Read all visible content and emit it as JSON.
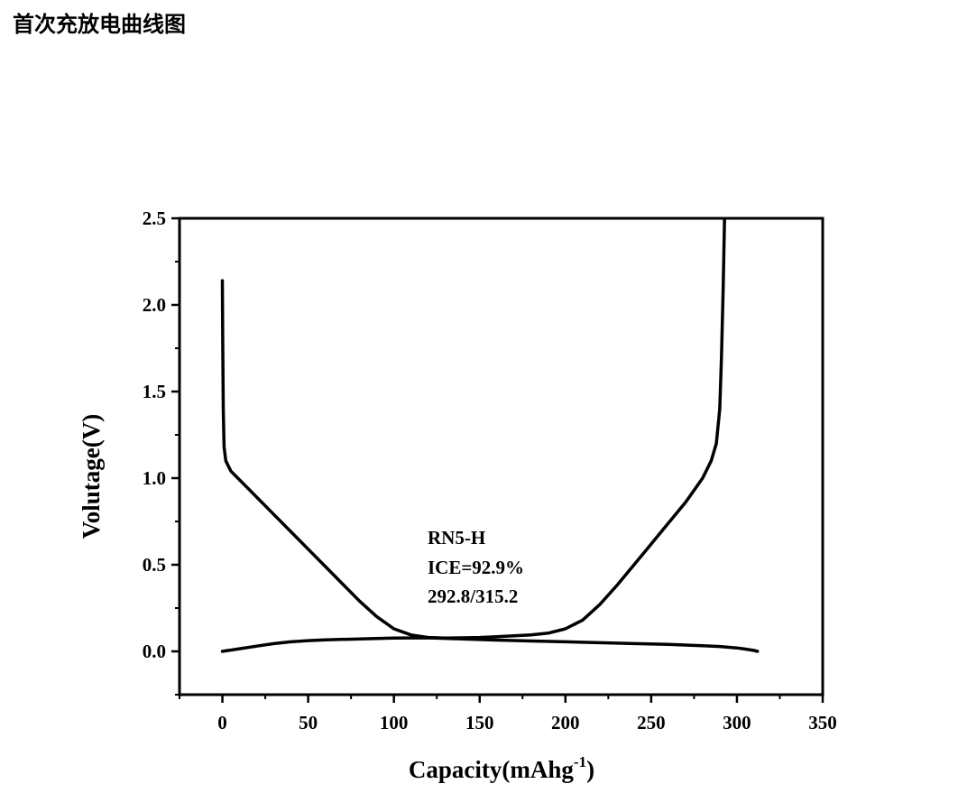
{
  "page": {
    "title": "首次充放电曲线图"
  },
  "chart_data": {
    "type": "line",
    "title": "",
    "xlabel_main": "Capacity(mAhg",
    "xlabel_sup": "-1",
    "xlabel_tail": ")",
    "ylabel": "Volutage(V)",
    "xlim": [
      -25,
      350
    ],
    "ylim": [
      -0.25,
      2.5
    ],
    "x_ticks": [
      0,
      50,
      100,
      150,
      200,
      250,
      300,
      350
    ],
    "x_tick_labels": [
      "0",
      "50",
      "100",
      "150",
      "200",
      "250",
      "300",
      "350"
    ],
    "y_ticks": [
      0.0,
      0.5,
      1.0,
      1.5,
      2.0,
      2.5
    ],
    "y_tick_labels": [
      "0.0",
      "0.5",
      "1.0",
      "1.5",
      "2.0",
      "2.5"
    ],
    "grid": false,
    "annotation": [
      "RN5-H",
      "ICE=92.9%",
      "292.8/315.2"
    ],
    "series": [
      {
        "color": "#000000",
        "x": [
          0,
          0.2,
          0.5,
          1,
          2,
          5,
          10,
          15,
          20,
          25,
          30,
          40,
          50,
          60,
          70,
          80,
          90,
          100,
          110,
          120,
          130,
          140,
          150,
          160,
          170,
          180,
          190,
          200,
          210,
          220,
          230,
          240,
          250,
          260,
          270,
          280,
          285,
          288,
          290,
          291,
          292,
          292.8
        ],
        "y": [
          2.14,
          1.8,
          1.4,
          1.18,
          1.1,
          1.04,
          0.99,
          0.94,
          0.89,
          0.84,
          0.79,
          0.69,
          0.59,
          0.49,
          0.39,
          0.29,
          0.2,
          0.13,
          0.095,
          0.08,
          0.077,
          0.078,
          0.08,
          0.085,
          0.09,
          0.095,
          0.105,
          0.13,
          0.18,
          0.27,
          0.38,
          0.5,
          0.62,
          0.74,
          0.86,
          1.0,
          1.1,
          1.2,
          1.4,
          1.7,
          2.1,
          2.5
        ]
      },
      {
        "color": "#000000",
        "x": [
          0,
          10,
          20,
          30,
          40,
          50,
          60,
          80,
          100,
          120,
          140,
          160,
          180,
          200,
          220,
          240,
          260,
          280,
          290,
          300,
          305,
          310,
          312
        ],
        "y": [
          0.0,
          0.015,
          0.03,
          0.045,
          0.055,
          0.062,
          0.066,
          0.072,
          0.077,
          0.078,
          0.072,
          0.065,
          0.06,
          0.055,
          0.05,
          0.045,
          0.04,
          0.033,
          0.028,
          0.02,
          0.013,
          0.005,
          0.0
        ]
      }
    ]
  }
}
